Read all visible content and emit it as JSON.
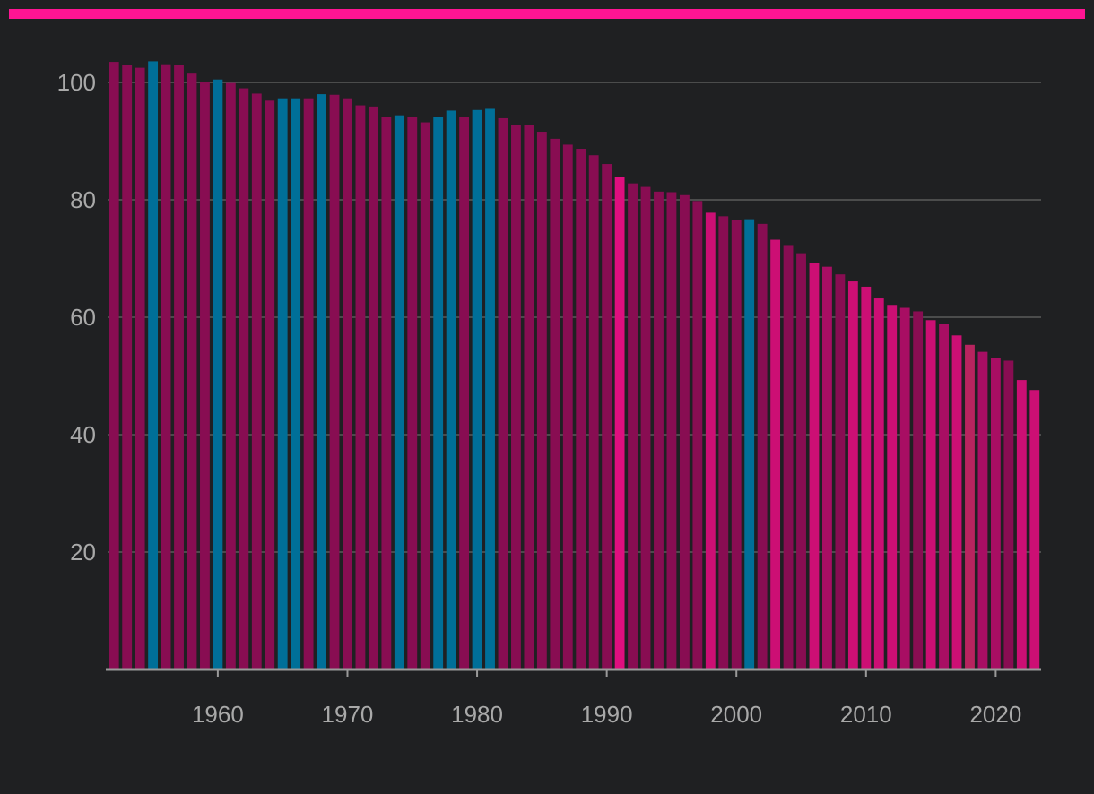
{
  "colors": {
    "background": "#1f2022",
    "accent_bar": "#ff1493",
    "grid": "#5a5a5a",
    "axis": "#9a9a9a",
    "tick_text": "#a9a9a9",
    "blue": "#006f98",
    "magenta_dark": "#880d52",
    "magenta_mid": "#a80e63",
    "magenta_bright": "#cc0f74",
    "magenta_hot": "#df0f7f",
    "rose": "#b8245f"
  },
  "chart_data": {
    "type": "bar",
    "title": "",
    "xlabel": "",
    "ylabel": "",
    "ylim": [
      0,
      105
    ],
    "xlim": [
      1951.5,
      2023.5
    ],
    "y_ticks": [
      "20",
      "40",
      "60",
      "80",
      "100"
    ],
    "x_ticks": [
      "1960",
      "1970",
      "1980",
      "1990",
      "2000",
      "2010",
      "2020"
    ],
    "grid": true,
    "legend": "none",
    "x": [
      1952,
      1953,
      1954,
      1955,
      1956,
      1957,
      1958,
      1959,
      1960,
      1961,
      1962,
      1963,
      1964,
      1965,
      1966,
      1967,
      1968,
      1969,
      1970,
      1971,
      1972,
      1973,
      1974,
      1975,
      1976,
      1977,
      1978,
      1979,
      1980,
      1981,
      1982,
      1983,
      1984,
      1985,
      1986,
      1987,
      1988,
      1989,
      1990,
      1991,
      1992,
      1993,
      1994,
      1995,
      1996,
      1997,
      1998,
      1999,
      2000,
      2001,
      2002,
      2003,
      2004,
      2005,
      2006,
      2007,
      2008,
      2009,
      2010,
      2011,
      2012,
      2013,
      2014,
      2015,
      2016,
      2017,
      2018,
      2019,
      2020,
      2021,
      2022,
      2023
    ],
    "values": [
      103.5,
      103,
      102.5,
      103.6,
      103.1,
      103,
      101.5,
      100,
      100.5,
      99.9,
      99,
      98.1,
      96.9,
      97.3,
      97.3,
      97.3,
      98,
      97.9,
      97.3,
      96.1,
      95.9,
      94.1,
      94.4,
      94.2,
      93.2,
      94.2,
      95.2,
      94.2,
      95.3,
      95.5,
      93.9,
      92.8,
      92.8,
      91.6,
      90.4,
      89.4,
      88.7,
      87.6,
      86.1,
      83.9,
      82.8,
      82.2,
      81.4,
      81.3,
      80.8,
      79.8,
      77.8,
      77.2,
      76.5,
      76.7,
      75.9,
      73.2,
      72.3,
      70.9,
      69.3,
      68.6,
      67.3,
      66.1,
      65.2,
      63.2,
      62.1,
      61.6,
      61,
      59.5,
      58.8,
      56.9,
      55.3,
      54.1,
      53.1,
      52.6,
      49.3,
      47.6
    ],
    "bar_colors": [
      "#880d52",
      "#880d52",
      "#880d52",
      "#006f98",
      "#880d52",
      "#880d52",
      "#880d52",
      "#880d52",
      "#006f98",
      "#880d52",
      "#880d52",
      "#880d52",
      "#880d52",
      "#006f98",
      "#006f98",
      "#880d52",
      "#006f98",
      "#880d52",
      "#880d52",
      "#880d52",
      "#880d52",
      "#880d52",
      "#006f98",
      "#880d52",
      "#880d52",
      "#006f98",
      "#006f98",
      "#880d52",
      "#006f98",
      "#006f98",
      "#880d52",
      "#880d52",
      "#880d52",
      "#880d52",
      "#880d52",
      "#880d52",
      "#880d52",
      "#880d52",
      "#880d52",
      "#df0f7f",
      "#880d52",
      "#880d52",
      "#880d52",
      "#880d52",
      "#880d52",
      "#880d52",
      "#cc0f74",
      "#880d52",
      "#880d52",
      "#006f98",
      "#880d52",
      "#cc0f74",
      "#880d52",
      "#880d52",
      "#cc0f74",
      "#a80e63",
      "#880d52",
      "#cc0f74",
      "#cc0f74",
      "#cc0f74",
      "#cc0f74",
      "#a80e63",
      "#880d52",
      "#cc0f74",
      "#a80e63",
      "#cc0f74",
      "#b8245f",
      "#a80e63",
      "#a80e63",
      "#880d52",
      "#cc0f74",
      "#cc0f74"
    ]
  }
}
